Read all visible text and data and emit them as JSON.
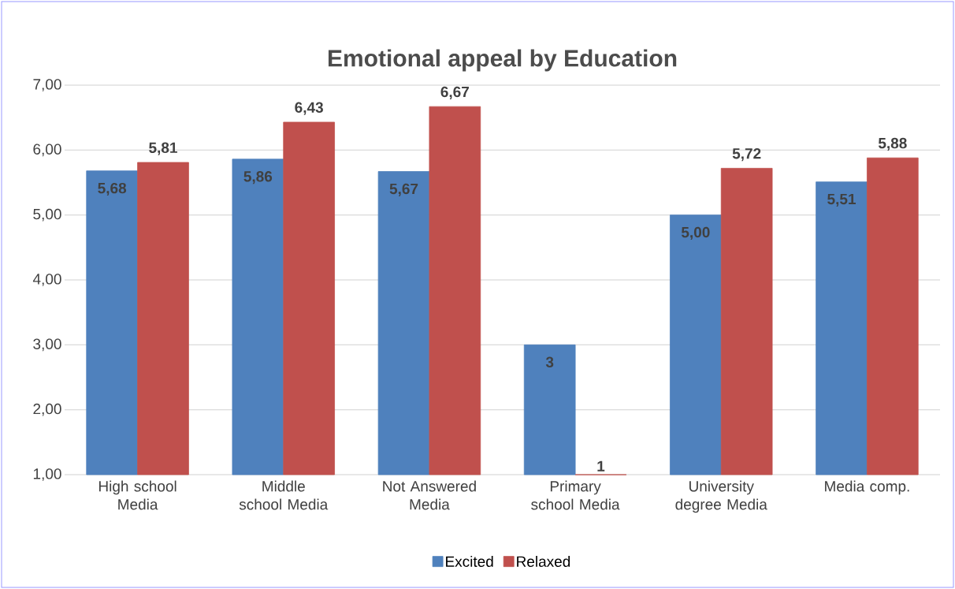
{
  "chart_data": {
    "type": "bar",
    "title": "Emotional appeal by Education",
    "categories": [
      "High school Media",
      "Middle school Media",
      "Not Answered Media",
      "Primary school Media",
      "University degree Media",
      "Media comp."
    ],
    "series": [
      {
        "name": "Excited",
        "color": "#4f81bd",
        "values": [
          5.68,
          5.86,
          5.67,
          3,
          5.0,
          5.51
        ],
        "value_labels": [
          "5,68",
          "5,86",
          "5,67",
          "3",
          "5,00",
          "5,51"
        ]
      },
      {
        "name": "Relaxed",
        "color": "#c0504d",
        "values": [
          5.81,
          6.43,
          6.67,
          1,
          5.72,
          5.88
        ],
        "value_labels": [
          "5,81",
          "6,43",
          "6,67",
          "1",
          "5,72",
          "5,88"
        ]
      }
    ],
    "ylim": [
      1,
      7
    ],
    "yticks": [
      {
        "value": 1,
        "label": "1,00"
      },
      {
        "value": 2,
        "label": "2,00"
      },
      {
        "value": 3,
        "label": "3,00"
      },
      {
        "value": 4,
        "label": "4,00"
      },
      {
        "value": 5,
        "label": "5,00"
      },
      {
        "value": 6,
        "label": "6,00"
      },
      {
        "value": 7,
        "label": "7,00"
      }
    ],
    "grid": "y",
    "legend": "bottom"
  }
}
